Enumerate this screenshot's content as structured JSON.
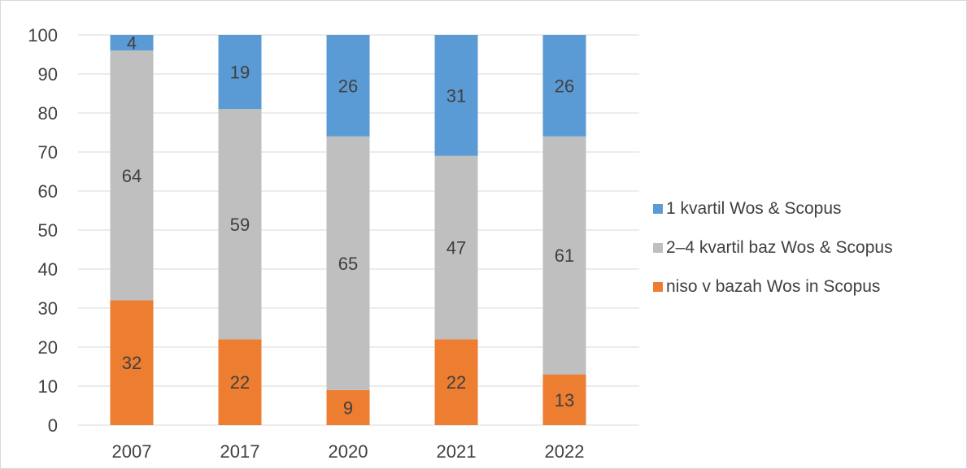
{
  "chart_data": {
    "type": "bar",
    "stacked": true,
    "categories": [
      "2007",
      "2017",
      "2020",
      "2021",
      "2022"
    ],
    "series": [
      {
        "name": "niso v bazah Wos in Scopus",
        "color": "#ed7d31",
        "values": [
          32,
          22,
          9,
          22,
          13
        ]
      },
      {
        "name": "2–4 kvartil baz Wos & Scopus",
        "color": "#bfbfbf",
        "values": [
          64,
          59,
          65,
          47,
          61
        ]
      },
      {
        "name": "1 kvartil Wos & Scopus",
        "color": "#5b9bd5",
        "values": [
          4,
          19,
          26,
          31,
          26
        ]
      }
    ],
    "ylim": [
      0,
      100
    ],
    "yticks": [
      0,
      10,
      20,
      30,
      40,
      50,
      60,
      70,
      80,
      90,
      100
    ],
    "grid": true,
    "legend_position": "right",
    "legend_order": [
      "1 kvartil Wos & Scopus",
      "2–4 kvartil baz Wos & Scopus",
      "niso v bazah Wos in Scopus"
    ]
  }
}
